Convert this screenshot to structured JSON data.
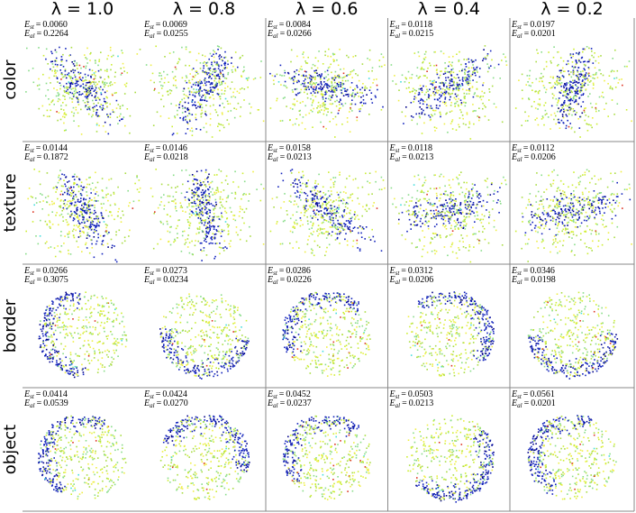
{
  "columns": [
    "λ = 1.0",
    "λ = 0.8",
    "λ = 0.6",
    "λ = 0.4",
    "λ = 0.2"
  ],
  "rows": [
    {
      "label": "color",
      "cells": [
        [
          "0.0060",
          "0.2264"
        ],
        [
          "0.0069",
          "0.0255"
        ],
        [
          "0.0084",
          "0.0266"
        ],
        [
          "0.0118",
          "0.0215"
        ],
        [
          "0.0197",
          "0.0201"
        ]
      ]
    },
    {
      "label": "texture",
      "cells": [
        [
          "0.0144",
          "0.1872"
        ],
        [
          "0.0146",
          "0.0218"
        ],
        [
          "0.0158",
          "0.0213"
        ],
        [
          "0.0118",
          "0.0213"
        ],
        [
          "0.0112",
          "0.0206"
        ]
      ]
    },
    {
      "label": "border",
      "cells": [
        [
          "0.0266",
          "0.3075"
        ],
        [
          "0.0273",
          "0.0234"
        ],
        [
          "0.0286",
          "0.0226"
        ],
        [
          "0.0312",
          "0.0206"
        ],
        [
          "0.0346",
          "0.0198"
        ]
      ]
    },
    {
      "label": "object",
      "cells": [
        [
          "0.0414",
          "0.0539"
        ],
        [
          "0.0424",
          "0.0270"
        ],
        [
          "0.0452",
          "0.0237"
        ],
        [
          "0.0503",
          "0.0213"
        ],
        [
          "0.0561",
          "0.0201"
        ]
      ]
    }
  ],
  "metrics": [
    {
      "symbol": "E",
      "sub": "st"
    },
    {
      "symbol": "E",
      "sub": "al"
    }
  ],
  "equals": "="
}
